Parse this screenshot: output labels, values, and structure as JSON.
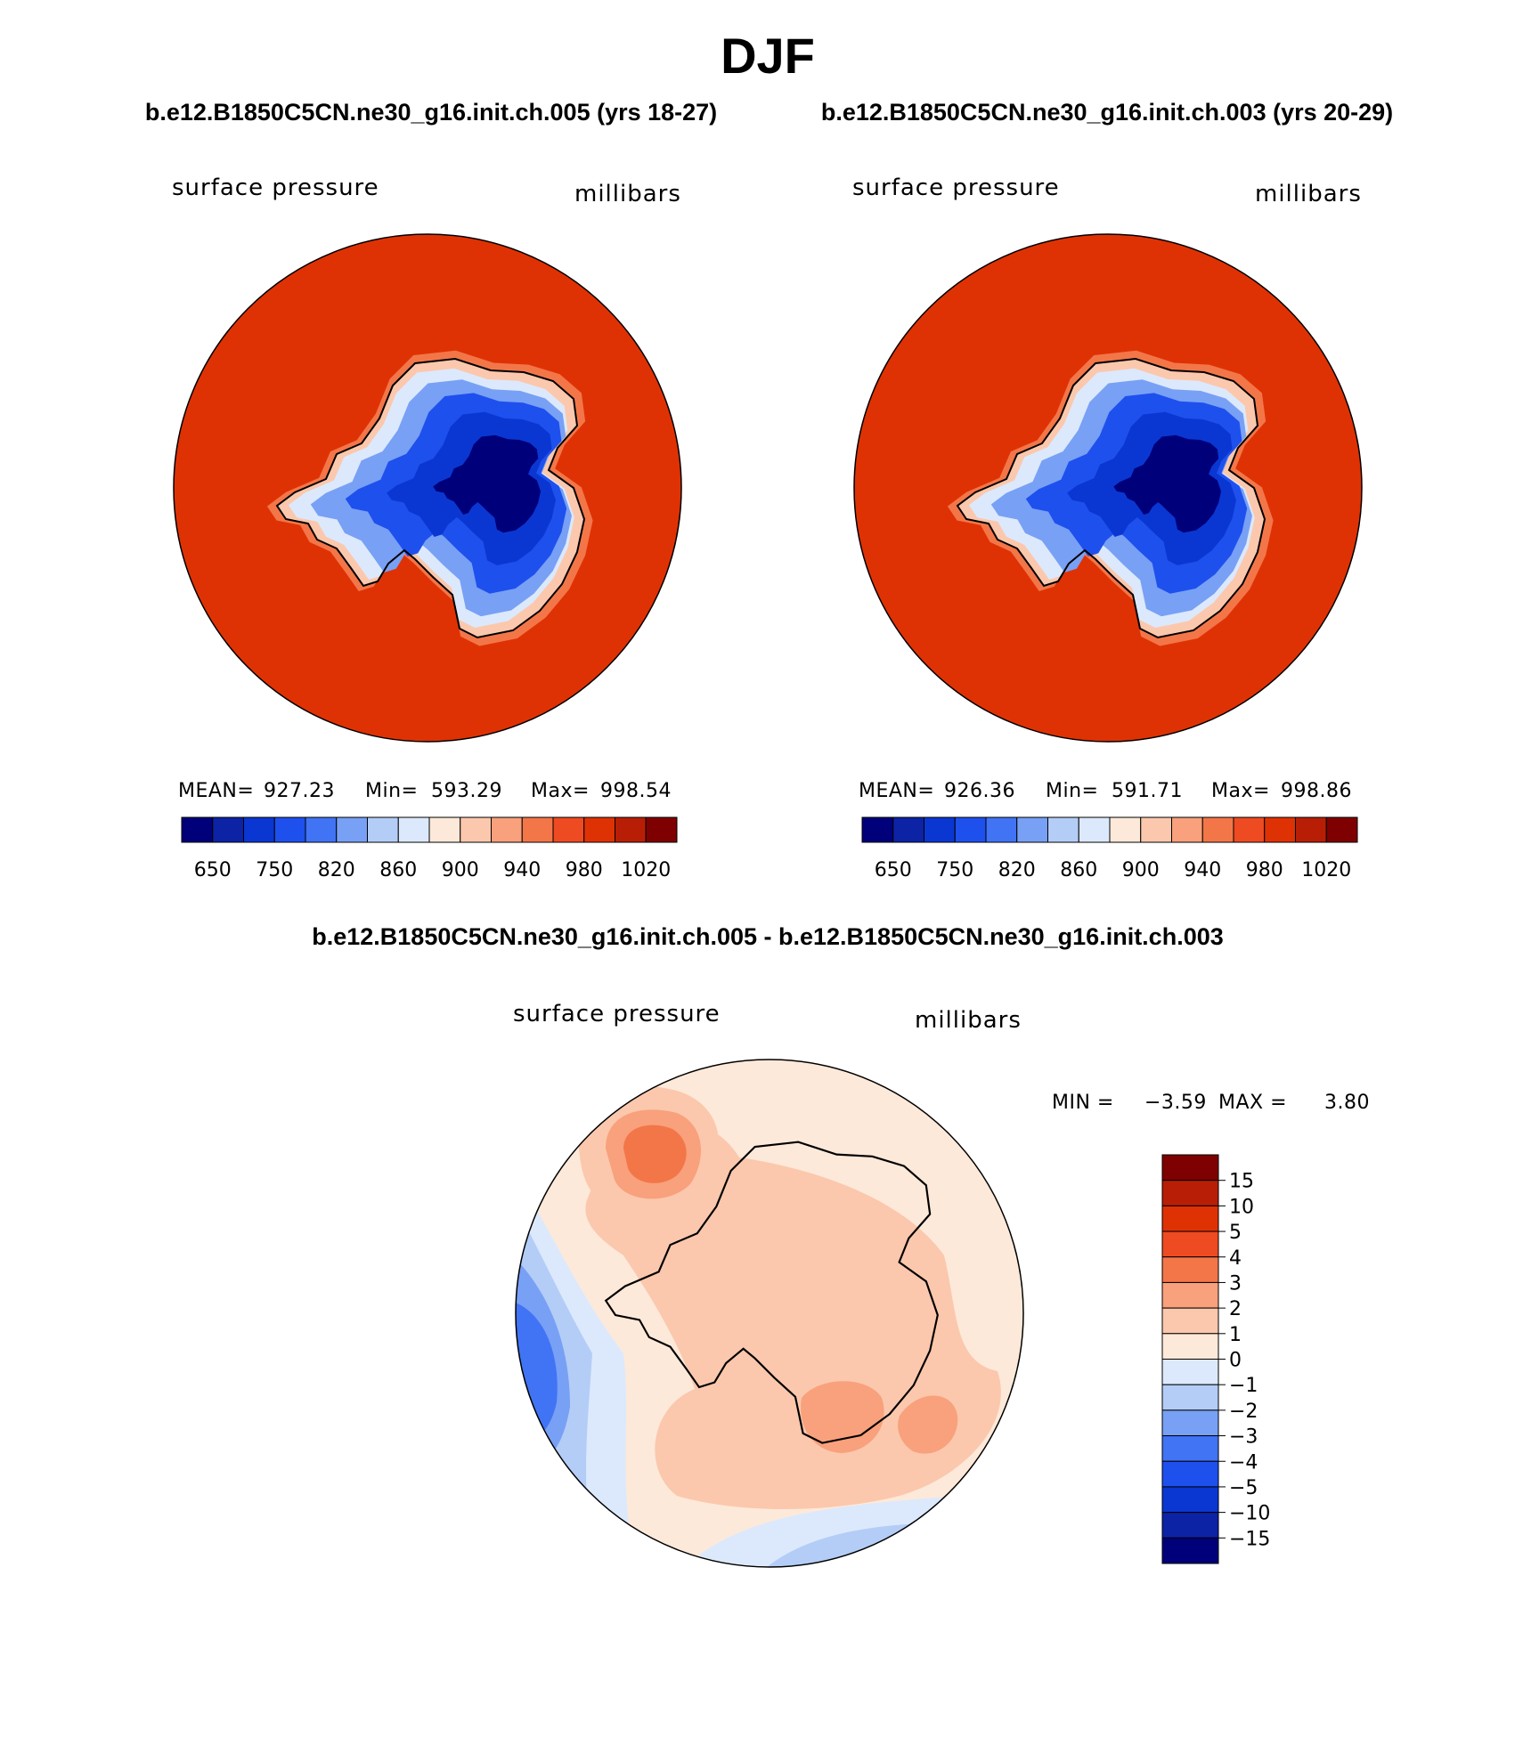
{
  "header": {
    "title": "DJF",
    "subtitle_left": "b.e12.B1850C5CN.ne30_g16.init.ch.005 (yrs 18-27)",
    "subtitle_right": "b.e12.B1850C5CN.ne30_g16.init.ch.003 (yrs 20-29)",
    "diff_title": "b.e12.B1850C5CN.ne30_g16.init.ch.005 - b.e12.B1850C5CN.ne30_g16.init.ch.003"
  },
  "chart_data": [
    {
      "type": "heatmap",
      "projection": "south-polar-stereographic",
      "variable": "surface pressure",
      "units": "millibars",
      "stats": {
        "mean_label": "MEAN=",
        "mean": "927.23",
        "min_label": "Min=",
        "min": "593.29",
        "max_label": "Max=",
        "max": "998.54"
      },
      "colorbar": {
        "orientation": "horizontal",
        "levels": [
          650,
          700,
          750,
          800,
          820,
          840,
          860,
          880,
          900,
          920,
          940,
          960,
          980,
          1000,
          1020
        ],
        "tick_labels": [
          "650",
          "750",
          "820",
          "860",
          "900",
          "940",
          "980",
          "1020"
        ],
        "colors": [
          "#00007a",
          "#0c23a6",
          "#0a37d2",
          "#1e50ee",
          "#4173f5",
          "#78a0f5",
          "#b4cdf7",
          "#dce9fc",
          "#fde9d9",
          "#fbc8ad",
          "#f8a17c",
          "#f37649",
          "#ee4b22",
          "#df3204",
          "#b81e05",
          "#7f0000"
        ]
      }
    },
    {
      "type": "heatmap",
      "projection": "south-polar-stereographic",
      "variable": "surface pressure",
      "units": "millibars",
      "stats": {
        "mean_label": "MEAN=",
        "mean": "926.36",
        "min_label": "Min=",
        "min": "591.71",
        "max_label": "Max=",
        "max": "998.86"
      },
      "colorbar": {
        "orientation": "horizontal",
        "levels": [
          650,
          700,
          750,
          800,
          820,
          840,
          860,
          880,
          900,
          920,
          940,
          960,
          980,
          1000,
          1020
        ],
        "tick_labels": [
          "650",
          "750",
          "820",
          "860",
          "900",
          "940",
          "980",
          "1020"
        ],
        "colors": [
          "#00007a",
          "#0c23a6",
          "#0a37d2",
          "#1e50ee",
          "#4173f5",
          "#78a0f5",
          "#b4cdf7",
          "#dce9fc",
          "#fde9d9",
          "#fbc8ad",
          "#f8a17c",
          "#f37649",
          "#ee4b22",
          "#df3204",
          "#b81e05",
          "#7f0000"
        ]
      }
    },
    {
      "type": "heatmap",
      "projection": "south-polar-stereographic",
      "variable": "surface pressure",
      "units": "millibars",
      "stats": {
        "min_label": "MIN =",
        "min": "−3.59",
        "max_label": "MAX =",
        "max": "3.80"
      },
      "colorbar": {
        "orientation": "vertical",
        "levels": [
          -15,
          -10,
          -5,
          -4,
          -3,
          -2,
          -1,
          0,
          1,
          2,
          3,
          4,
          5,
          10,
          15
        ],
        "tick_labels": [
          "15",
          "10",
          "5",
          "4",
          "3",
          "2",
          "1",
          "0",
          "−1",
          "−2",
          "−3",
          "−4",
          "−5",
          "−10",
          "−15"
        ],
        "colors": [
          "#7f0000",
          "#b81e05",
          "#df3204",
          "#ee4b22",
          "#f37649",
          "#f8a17c",
          "#fbc8ad",
          "#fde9d9",
          "#dce9fc",
          "#b4cdf7",
          "#78a0f5",
          "#4173f5",
          "#1e50ee",
          "#0a37d2",
          "#0c23a6",
          "#00007a"
        ]
      }
    }
  ]
}
